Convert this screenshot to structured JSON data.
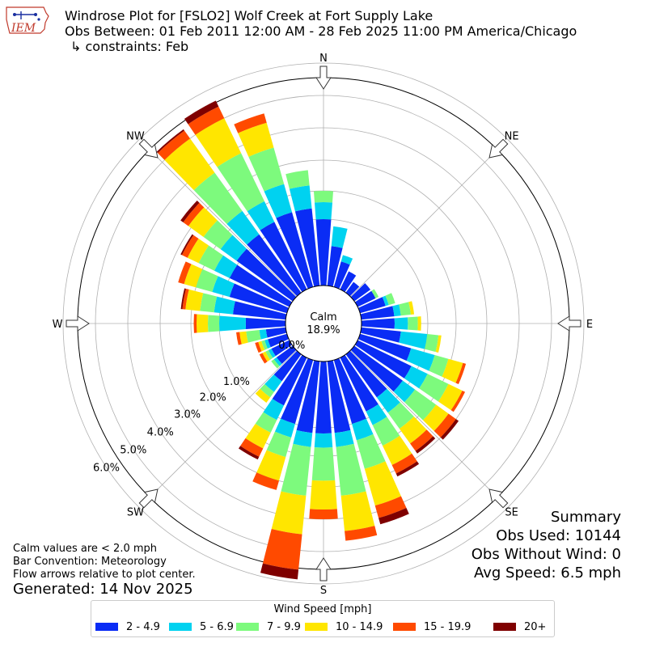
{
  "title": {
    "line1": "Windrose Plot for [FSLO2] Wolf Creek at Fort Supply Lake",
    "line2": "Obs Between: 01 Feb 2011 12:00 AM - 28 Feb 2025 11:00 PM America/Chicago",
    "line3": "↳ constraints: Feb"
  },
  "logo_text": "IEM",
  "summary": {
    "heading": "Summary",
    "obs_used": "Obs Used: 10144",
    "obs_without_wind": "Obs Without Wind: 0",
    "avg_speed": "Avg Speed: 6.5 mph"
  },
  "notes": {
    "calm": "Calm values are < 2.0 mph",
    "bar_convention": "Bar Convention: Meteorology",
    "flow_arrows": "Flow arrows relative to plot center."
  },
  "generated": "Generated: 14 Nov 2025",
  "chart_data": {
    "type": "windrose",
    "calm_label": "Calm",
    "calm_value_label": "18.9%",
    "calm_percent": 18.9,
    "compass_labels": [
      "N",
      "NE",
      "E",
      "SE",
      "S",
      "SW",
      "W",
      "NW"
    ],
    "radial_ticks": [
      0,
      1,
      2,
      3,
      4,
      5,
      6
    ],
    "radial_tick_labels": [
      "0.0%",
      "1.0%",
      "2.0%",
      "3.0%",
      "4.0%",
      "5.0%",
      "6.0%"
    ],
    "legend_title": "Wind Speed [mph]",
    "speed_bins": [
      "2 - 4.9",
      "5 - 6.9",
      "7 - 9.9",
      "10 - 14.9",
      "15 - 19.9",
      "20+"
    ],
    "colors": [
      "#0a2cf5",
      "#00d2f0",
      "#7dfa7d",
      "#ffe600",
      "#ff4a00",
      "#7f0000"
    ],
    "direction_step_deg": 10,
    "directions_deg": [
      0,
      10,
      20,
      30,
      40,
      50,
      60,
      70,
      80,
      90,
      100,
      110,
      120,
      130,
      140,
      150,
      160,
      170,
      180,
      190,
      200,
      210,
      220,
      230,
      240,
      250,
      260,
      270,
      280,
      290,
      300,
      310,
      320,
      330,
      340,
      350
    ],
    "cumulative_percent": [
      [
        1.0,
        1.6,
        2.0,
        2.0,
        2.0,
        2.0
      ],
      [
        0.6,
        0.9,
        0.9,
        0.9,
        0.9,
        0.9
      ],
      [
        0.4,
        0.5,
        0.5,
        0.5,
        0.5,
        0.5
      ],
      [
        0.3,
        0.3,
        0.3,
        0.3,
        0.3,
        0.3
      ],
      [
        0.2,
        0.2,
        0.2,
        0.2,
        0.2,
        0.2
      ],
      [
        0.3,
        0.3,
        0.3,
        0.3,
        0.3,
        0.3
      ],
      [
        0.3,
        0.3,
        0.35,
        0.35,
        0.35,
        0.35
      ],
      [
        0.4,
        0.45,
        0.55,
        0.55,
        0.55,
        0.55
      ],
      [
        0.5,
        0.6,
        0.75,
        0.8,
        0.8,
        0.8
      ],
      [
        0.5,
        0.7,
        0.85,
        0.9,
        0.9,
        0.9
      ],
      [
        0.6,
        1.0,
        1.4,
        1.5,
        1.5,
        1.5
      ],
      [
        0.8,
        1.4,
        1.9,
        2.4,
        2.5,
        2.5
      ],
      [
        0.9,
        1.4,
        2.2,
        2.7,
        2.8,
        2.8
      ],
      [
        0.9,
        1.3,
        2.2,
        2.7,
        3.0,
        3.1
      ],
      [
        0.8,
        1.2,
        1.9,
        2.5,
        2.8,
        2.9
      ],
      [
        0.9,
        1.3,
        2.1,
        2.8,
        3.1,
        3.2
      ],
      [
        1.0,
        1.6,
        2.6,
        3.8,
        4.2,
        4.4
      ],
      [
        1.2,
        1.7,
        3.3,
        4.4,
        4.7,
        4.7
      ],
      [
        1.2,
        1.7,
        2.8,
        3.7,
        4.0,
        4.0
      ],
      [
        1.2,
        1.7,
        3.3,
        4.5,
        5.6,
        5.9
      ],
      [
        1.0,
        1.5,
        2.2,
        3.0,
        3.3,
        3.3
      ],
      [
        0.8,
        1.1,
        1.6,
        2.2,
        2.5,
        2.6
      ],
      [
        0.5,
        0.7,
        0.8,
        0.9,
        0.9,
        0.9
      ],
      [
        0.3,
        0.35,
        0.4,
        0.4,
        0.4,
        0.4
      ],
      [
        0.3,
        0.35,
        0.4,
        0.45,
        0.5,
        0.5
      ],
      [
        0.3,
        0.35,
        0.4,
        0.45,
        0.5,
        0.5
      ],
      [
        0.3,
        0.4,
        0.6,
        0.7,
        0.75,
        0.75
      ],
      [
        0.6,
        1.0,
        1.4,
        1.8,
        1.9,
        1.9
      ],
      [
        0.8,
        1.2,
        1.7,
        2.2,
        2.3,
        2.35
      ],
      [
        0.9,
        1.4,
        2.0,
        2.4,
        2.6,
        2.6
      ],
      [
        1.0,
        1.6,
        2.2,
        2.6,
        2.8,
        2.85
      ],
      [
        1.1,
        1.8,
        2.5,
        3.1,
        3.3,
        3.4
      ],
      [
        1.2,
        2.2,
        3.7,
        5.0,
        5.3,
        5.35
      ],
      [
        1.3,
        2.1,
        3.8,
        5.0,
        5.4,
        5.6
      ],
      [
        1.4,
        2.4,
        3.6,
        4.4,
        4.7,
        4.7
      ],
      [
        1.4,
        2.2,
        2.7,
        2.7,
        2.7,
        2.7
      ]
    ]
  }
}
